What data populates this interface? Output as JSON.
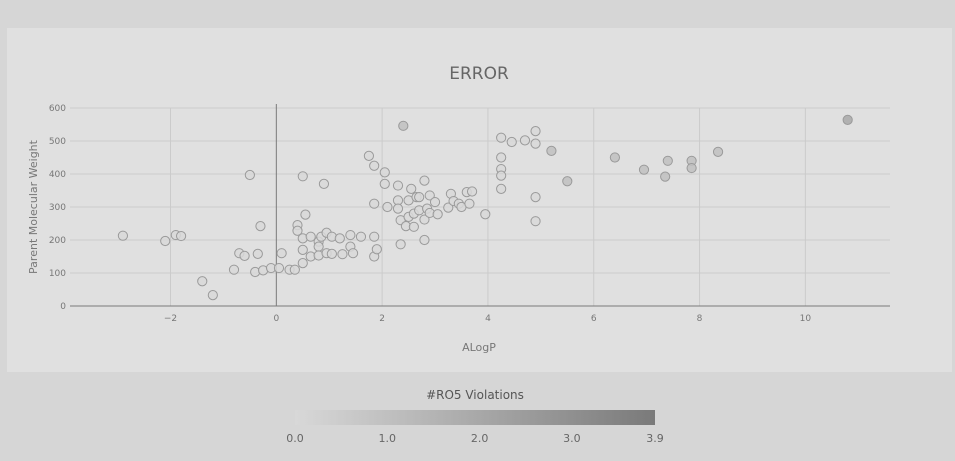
{
  "chart_data": {
    "type": "scatter",
    "title": "ERROR",
    "xlabel": "ALogP",
    "ylabel": "Parent Molecular Weight",
    "xlim": [
      -3.9,
      11.6
    ],
    "ylim": [
      0,
      600
    ],
    "xticks": [
      -2,
      0,
      2,
      4,
      6,
      8,
      10
    ],
    "yticks": [
      0,
      100,
      200,
      300,
      400,
      500,
      600
    ],
    "grid": true,
    "colorbar": {
      "title": "#RO5 Violations",
      "ticks": [
        "0.0",
        "1.0",
        "2.0",
        "3.0",
        "3.9"
      ],
      "min": 0,
      "max": 3.9,
      "color_low": "#d8d8d8",
      "color_high": "#7a7a7a"
    },
    "points": [
      {
        "x": -2.9,
        "y": 213,
        "c": 0
      },
      {
        "x": -2.1,
        "y": 197,
        "c": 0
      },
      {
        "x": -1.9,
        "y": 215,
        "c": 0
      },
      {
        "x": -1.8,
        "y": 212,
        "c": 0
      },
      {
        "x": -1.4,
        "y": 75,
        "c": 0
      },
      {
        "x": -1.2,
        "y": 33,
        "c": 0
      },
      {
        "x": -0.8,
        "y": 110,
        "c": 0
      },
      {
        "x": -0.7,
        "y": 160,
        "c": 0
      },
      {
        "x": -0.6,
        "y": 152,
        "c": 0
      },
      {
        "x": -0.5,
        "y": 397,
        "c": 0
      },
      {
        "x": -0.4,
        "y": 103,
        "c": 0
      },
      {
        "x": -0.35,
        "y": 158,
        "c": 0
      },
      {
        "x": -0.3,
        "y": 242,
        "c": 0
      },
      {
        "x": -0.25,
        "y": 108,
        "c": 0
      },
      {
        "x": -0.1,
        "y": 115,
        "c": 0
      },
      {
        "x": 0.05,
        "y": 115,
        "c": 0
      },
      {
        "x": 0.1,
        "y": 160,
        "c": 0
      },
      {
        "x": 0.25,
        "y": 110,
        "c": 0
      },
      {
        "x": 0.35,
        "y": 110,
        "c": 0
      },
      {
        "x": 0.4,
        "y": 245,
        "c": 0
      },
      {
        "x": 0.4,
        "y": 228,
        "c": 0
      },
      {
        "x": 0.5,
        "y": 393,
        "c": 0
      },
      {
        "x": 0.5,
        "y": 205,
        "c": 0
      },
      {
        "x": 0.5,
        "y": 170,
        "c": 0
      },
      {
        "x": 0.5,
        "y": 130,
        "c": 0
      },
      {
        "x": 0.55,
        "y": 277,
        "c": 0
      },
      {
        "x": 0.65,
        "y": 210,
        "c": 0
      },
      {
        "x": 0.65,
        "y": 150,
        "c": 0
      },
      {
        "x": 0.8,
        "y": 195,
        "c": 0
      },
      {
        "x": 0.8,
        "y": 180,
        "c": 0
      },
      {
        "x": 0.8,
        "y": 153,
        "c": 0
      },
      {
        "x": 0.85,
        "y": 210,
        "c": 0
      },
      {
        "x": 0.9,
        "y": 370,
        "c": 0
      },
      {
        "x": 0.95,
        "y": 222,
        "c": 0
      },
      {
        "x": 0.95,
        "y": 160,
        "c": 0
      },
      {
        "x": 1.05,
        "y": 210,
        "c": 0
      },
      {
        "x": 1.05,
        "y": 158,
        "c": 0
      },
      {
        "x": 1.2,
        "y": 205,
        "c": 0
      },
      {
        "x": 1.25,
        "y": 157,
        "c": 0
      },
      {
        "x": 1.4,
        "y": 180,
        "c": 0
      },
      {
        "x": 1.4,
        "y": 215,
        "c": 0
      },
      {
        "x": 1.45,
        "y": 160,
        "c": 0
      },
      {
        "x": 1.6,
        "y": 210,
        "c": 0
      },
      {
        "x": 1.75,
        "y": 455,
        "c": 0
      },
      {
        "x": 1.85,
        "y": 425,
        "c": 0
      },
      {
        "x": 1.85,
        "y": 310,
        "c": 0
      },
      {
        "x": 1.85,
        "y": 210,
        "c": 0
      },
      {
        "x": 1.85,
        "y": 150,
        "c": 0
      },
      {
        "x": 1.9,
        "y": 172,
        "c": 0
      },
      {
        "x": 2.05,
        "y": 405,
        "c": 0
      },
      {
        "x": 2.05,
        "y": 370,
        "c": 0
      },
      {
        "x": 2.1,
        "y": 300,
        "c": 0
      },
      {
        "x": 2.3,
        "y": 365,
        "c": 0
      },
      {
        "x": 2.3,
        "y": 320,
        "c": 0
      },
      {
        "x": 2.3,
        "y": 295,
        "c": 0
      },
      {
        "x": 2.35,
        "y": 260,
        "c": 0
      },
      {
        "x": 2.35,
        "y": 187,
        "c": 0
      },
      {
        "x": 2.4,
        "y": 546,
        "c": 1
      },
      {
        "x": 2.45,
        "y": 242,
        "c": 0
      },
      {
        "x": 2.5,
        "y": 320,
        "c": 0
      },
      {
        "x": 2.5,
        "y": 270,
        "c": 0
      },
      {
        "x": 2.55,
        "y": 355,
        "c": 0
      },
      {
        "x": 2.6,
        "y": 280,
        "c": 0
      },
      {
        "x": 2.6,
        "y": 240,
        "c": 0
      },
      {
        "x": 2.65,
        "y": 330,
        "c": 0
      },
      {
        "x": 2.7,
        "y": 330,
        "c": 0
      },
      {
        "x": 2.7,
        "y": 290,
        "c": 0
      },
      {
        "x": 2.8,
        "y": 380,
        "c": 0
      },
      {
        "x": 2.8,
        "y": 262,
        "c": 0
      },
      {
        "x": 2.8,
        "y": 200,
        "c": 0
      },
      {
        "x": 2.85,
        "y": 295,
        "c": 0
      },
      {
        "x": 2.9,
        "y": 335,
        "c": 0
      },
      {
        "x": 2.9,
        "y": 282,
        "c": 0
      },
      {
        "x": 3.0,
        "y": 315,
        "c": 0
      },
      {
        "x": 3.05,
        "y": 278,
        "c": 0
      },
      {
        "x": 3.25,
        "y": 298,
        "c": 0
      },
      {
        "x": 3.3,
        "y": 340,
        "c": 0
      },
      {
        "x": 3.35,
        "y": 318,
        "c": 0
      },
      {
        "x": 3.45,
        "y": 310,
        "c": 0
      },
      {
        "x": 3.5,
        "y": 300,
        "c": 0
      },
      {
        "x": 3.6,
        "y": 345,
        "c": 0
      },
      {
        "x": 3.65,
        "y": 310,
        "c": 0
      },
      {
        "x": 3.7,
        "y": 347,
        "c": 0
      },
      {
        "x": 3.95,
        "y": 278,
        "c": 0
      },
      {
        "x": 4.25,
        "y": 510,
        "c": 0
      },
      {
        "x": 4.25,
        "y": 450,
        "c": 0
      },
      {
        "x": 4.25,
        "y": 415,
        "c": 0
      },
      {
        "x": 4.25,
        "y": 395,
        "c": 0
      },
      {
        "x": 4.25,
        "y": 355,
        "c": 0
      },
      {
        "x": 4.45,
        "y": 497,
        "c": 0
      },
      {
        "x": 4.7,
        "y": 502,
        "c": 0
      },
      {
        "x": 4.9,
        "y": 530,
        "c": 0
      },
      {
        "x": 4.9,
        "y": 492,
        "c": 0
      },
      {
        "x": 4.9,
        "y": 330,
        "c": 0
      },
      {
        "x": 4.9,
        "y": 257,
        "c": 0
      },
      {
        "x": 5.2,
        "y": 470,
        "c": 1
      },
      {
        "x": 5.5,
        "y": 378,
        "c": 1
      },
      {
        "x": 6.4,
        "y": 450,
        "c": 1
      },
      {
        "x": 6.95,
        "y": 413,
        "c": 1
      },
      {
        "x": 7.35,
        "y": 392,
        "c": 1
      },
      {
        "x": 7.4,
        "y": 440,
        "c": 1
      },
      {
        "x": 7.85,
        "y": 440,
        "c": 1
      },
      {
        "x": 7.85,
        "y": 418,
        "c": 1
      },
      {
        "x": 8.35,
        "y": 467,
        "c": 1
      },
      {
        "x": 10.8,
        "y": 564,
        "c": 2
      }
    ]
  }
}
